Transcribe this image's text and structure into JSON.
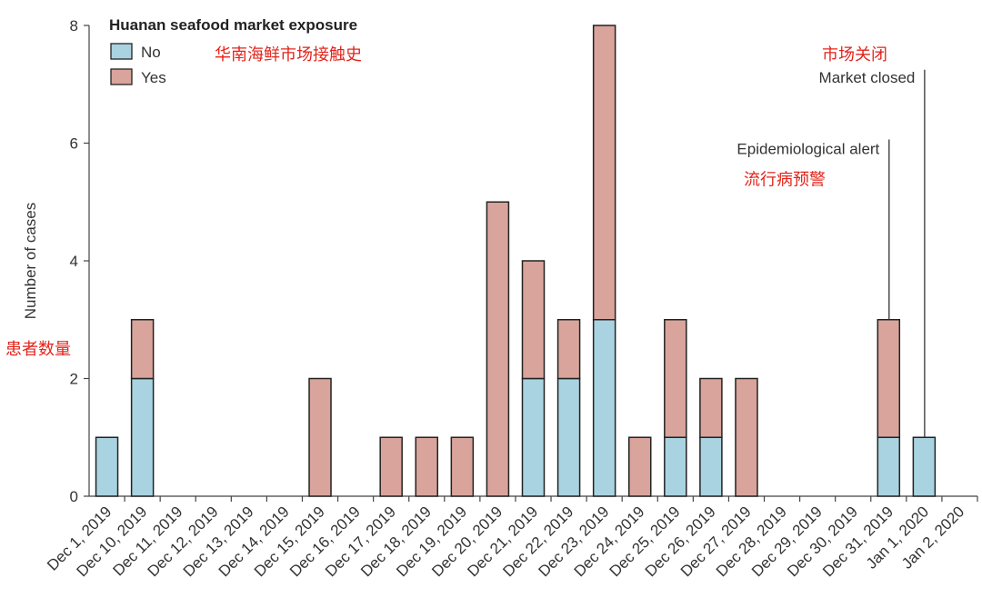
{
  "chart_data": {
    "type": "bar",
    "stacked": true,
    "categories": [
      "Dec 1, 2019",
      "Dec 10, 2019",
      "Dec 11, 2019",
      "Dec 12, 2019",
      "Dec 13, 2019",
      "Dec 14, 2019",
      "Dec 15, 2019",
      "Dec 16, 2019",
      "Dec 17, 2019",
      "Dec 18, 2019",
      "Dec 19, 2019",
      "Dec 20, 2019",
      "Dec 21, 2019",
      "Dec 22, 2019",
      "Dec 23, 2019",
      "Dec 24, 2019",
      "Dec 25, 2019",
      "Dec 26, 2019",
      "Dec 27, 2019",
      "Dec 28, 2019",
      "Dec 29, 2019",
      "Dec 30, 2019",
      "Dec 31, 2019",
      "Jan 1, 2020",
      "Jan 2, 2020"
    ],
    "series": [
      {
        "name": "No",
        "color": "#a9d3e0",
        "values": [
          1,
          2,
          0,
          0,
          0,
          0,
          0,
          0,
          0,
          0,
          0,
          0,
          2,
          2,
          3,
          0,
          1,
          1,
          0,
          0,
          0,
          0,
          1,
          1,
          0
        ]
      },
      {
        "name": "Yes",
        "color": "#d9a49b",
        "values": [
          0,
          1,
          0,
          0,
          0,
          0,
          2,
          0,
          1,
          1,
          1,
          5,
          2,
          1,
          5,
          1,
          2,
          1,
          2,
          0,
          0,
          0,
          2,
          0,
          0
        ]
      }
    ],
    "ylabel": "Number of cases",
    "ylabel_cn": "患者数量",
    "ylim": [
      0,
      8
    ],
    "yticks": [
      0,
      2,
      4,
      6,
      8
    ],
    "grid": false,
    "legend": {
      "title": "Huanan seafood market exposure",
      "title_cn": "华南海鲜市场接触史",
      "position": "top-left"
    },
    "annotations": [
      {
        "text": "Epidemiological alert",
        "text_cn": "流行病预警",
        "category": "Dec 31, 2019",
        "y": 6
      },
      {
        "text": "Market closed",
        "text_cn": "市场关闭",
        "category": "Jan 1, 2020",
        "y": 7
      }
    ]
  },
  "colors": {
    "no": "#a9d3e0",
    "yes": "#d9a49b",
    "bar_stroke": "#222222",
    "axis": "#444444",
    "cn_text": "#e3241b"
  }
}
